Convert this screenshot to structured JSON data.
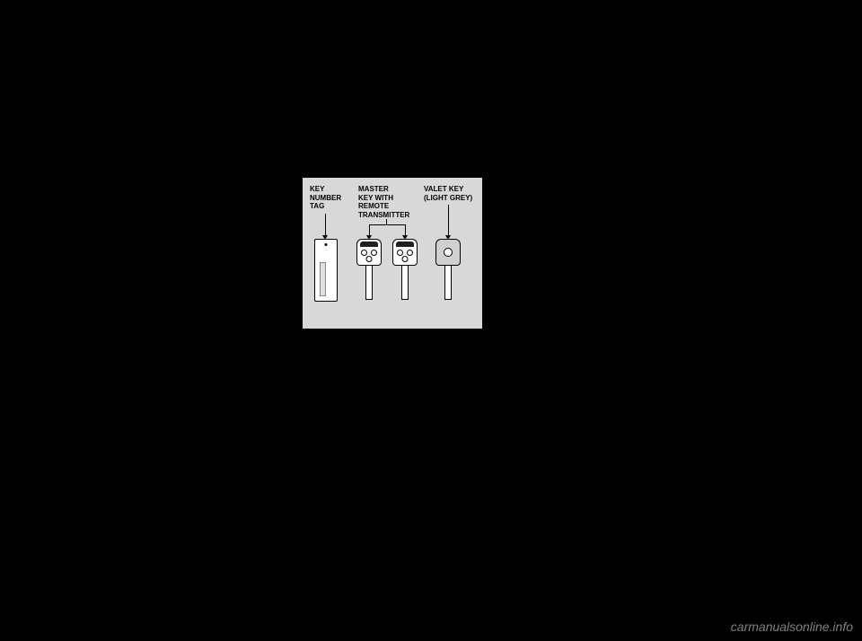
{
  "diagram": {
    "background_color": "#d8d8d8",
    "labels": {
      "key_number_tag": {
        "line1": "KEY",
        "line2": "NUMBER",
        "line3": "TAG"
      },
      "master_key": {
        "line1": "MASTER",
        "line2": "KEY WITH",
        "line3": "REMOTE",
        "line4": "TRANSMITTER"
      },
      "valet_key": {
        "line1": "VALET KEY",
        "line2": "(LIGHT GREY)"
      }
    },
    "label_font_size": 8,
    "label_font_weight": "bold",
    "label_color": "#000000",
    "keys": {
      "tag_color": "#ffffff",
      "master_key_color": "#ffffff",
      "valet_key_color": "#d0d0d0",
      "key_border_color": "#000000"
    },
    "pointers": {
      "line_color": "#000000",
      "line_width": 1
    }
  },
  "page_background": "#000000",
  "watermark": "carmanualsonline.info"
}
